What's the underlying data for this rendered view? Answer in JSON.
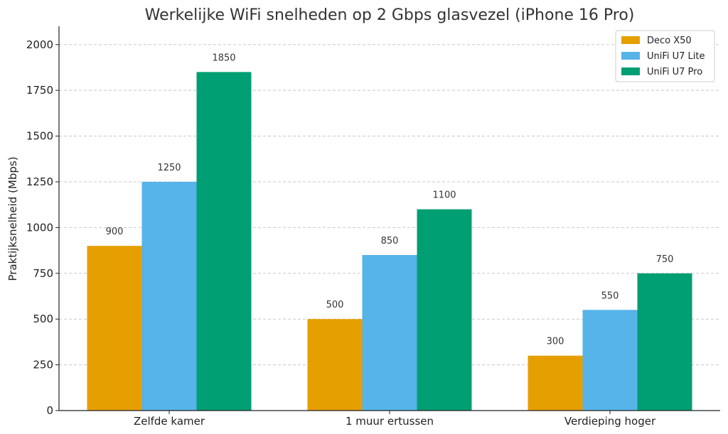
{
  "chart_data": {
    "type": "bar",
    "title": "Werkelijke WiFi snelheden op 2 Gbps glasvezel (iPhone 16 Pro)",
    "xlabel": "",
    "ylabel": "Praktijksnelheid (Mbps)",
    "categories": [
      "Zelfde kamer",
      "1 muur ertussen",
      "Verdieping hoger"
    ],
    "series": [
      {
        "name": "Deco X50",
        "color": "#E69F00",
        "values": [
          900,
          500,
          300
        ]
      },
      {
        "name": "UniFi U7 Lite",
        "color": "#56B4E9",
        "values": [
          1250,
          850,
          550
        ]
      },
      {
        "name": "UniFi U7 Pro",
        "color": "#009E73",
        "values": [
          1850,
          1100,
          750
        ]
      }
    ],
    "ylim": [
      0,
      2100
    ],
    "yticks": [
      0,
      250,
      500,
      750,
      1000,
      1250,
      1500,
      1750,
      2000
    ],
    "grid": true,
    "legend_position": "top-right"
  }
}
